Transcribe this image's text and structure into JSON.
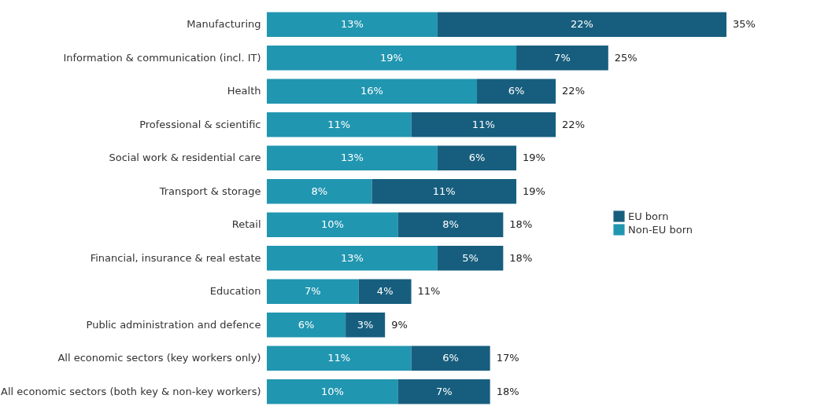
{
  "chart_data": {
    "type": "bar",
    "orientation": "horizontal",
    "stacked": true,
    "legend": "right",
    "grid": false,
    "categories": [
      "Manufacturing",
      "Information & communication (incl. IT)",
      "Health",
      "Professional & scientific",
      "Social work & residential care",
      "Transport & storage",
      "Retail",
      "Financial, insurance & real estate",
      "Education",
      "Public administration and defence",
      "All economic sectors (key workers only)",
      "All economic sectors (both key & non-key workers)"
    ],
    "series": [
      {
        "name": "Non-EU born",
        "color": "#2196b0",
        "values": [
          13,
          19,
          16,
          11,
          13,
          8,
          10,
          13,
          7,
          6,
          11,
          10
        ],
        "value_labels": [
          "13%",
          "19%",
          "16%",
          "11%",
          "13%",
          "8%",
          "10%",
          "13%",
          "7%",
          "6%",
          "11%",
          "10%"
        ]
      },
      {
        "name": "EU born",
        "color": "#175e7e",
        "values": [
          22,
          7,
          6,
          11,
          6,
          11,
          8,
          5,
          4,
          3,
          6,
          7
        ],
        "value_labels": [
          "22%",
          "7%",
          "6%",
          "11%",
          "6%",
          "11%",
          "8%",
          "5%",
          "4%",
          "3%",
          "6%",
          "7%"
        ]
      }
    ],
    "totals": [
      "35%",
      "25%",
      "22%",
      "22%",
      "19%",
      "19%",
      "18%",
      "18%",
      "11%",
      "9%",
      "17%",
      "18%"
    ]
  }
}
